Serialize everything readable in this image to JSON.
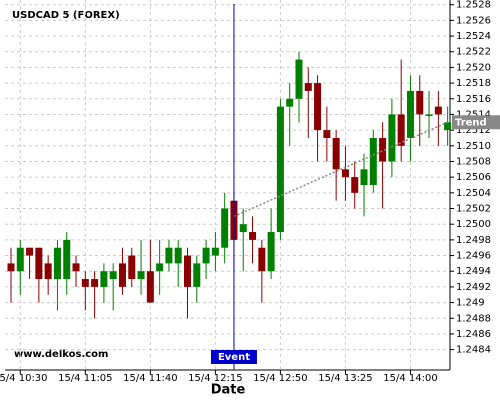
{
  "chart_data": {
    "type": "candlestick",
    "title": "USDCAD 5 (FOREX)",
    "x_label": "Date",
    "watermark": "www.delkos.com",
    "categories": [
      null,
      "15/4 10:30",
      null,
      null,
      null,
      null,
      null,
      null,
      "15/4 11:05",
      null,
      null,
      null,
      null,
      null,
      null,
      "15/4 11:40",
      null,
      null,
      null,
      null,
      null,
      null,
      "15/4 12:15",
      null,
      null,
      null,
      null,
      null,
      null,
      "15/4 12:50",
      null,
      null,
      null,
      null,
      null,
      null,
      "15/4 13:25",
      null,
      null,
      null,
      null,
      null,
      null,
      "15/4 14:00",
      null,
      null,
      null,
      null
    ],
    "series": [
      {
        "up_color": "#008000",
        "down_color": "#8b0000",
        "open": [
          1.2495,
          1.2494,
          1.2497,
          1.2497,
          1.2495,
          1.2493,
          1.2493,
          1.2495,
          1.2493,
          1.2493,
          1.2492,
          1.2493,
          1.2495,
          1.2496,
          1.2493,
          1.2494,
          1.2494,
          1.2495,
          1.2495,
          1.2496,
          1.2492,
          1.2495,
          1.2496,
          1.2497,
          1.2503,
          1.2499,
          1.2499,
          1.2497,
          1.2494,
          1.2499,
          1.2515,
          1.2516,
          1.2518,
          1.2518,
          1.2512,
          1.2511,
          1.2507,
          1.2506,
          1.2505,
          1.2505,
          1.2511,
          1.2508,
          1.2514,
          1.2511,
          1.2517,
          1.2514,
          1.2515,
          1.2512
        ],
        "high": [
          1.2497,
          1.2498,
          1.2497,
          1.2497,
          1.2496,
          1.2498,
          1.2499,
          1.2496,
          1.2494,
          1.2494,
          1.2495,
          1.2495,
          1.2497,
          1.2497,
          1.2498,
          1.2498,
          1.2498,
          1.2498,
          1.2498,
          1.2497,
          1.2496,
          1.2498,
          1.2499,
          1.2504,
          1.2504,
          1.2502,
          1.2501,
          1.2498,
          1.2502,
          1.2516,
          1.2518,
          1.2522,
          1.252,
          1.2519,
          1.2515,
          1.2512,
          1.251,
          1.2508,
          1.2509,
          1.2512,
          1.2513,
          1.2516,
          1.2521,
          1.2519,
          1.2519,
          1.2517,
          1.2517,
          1.2515
        ],
        "low": [
          1.249,
          1.2491,
          1.2493,
          1.249,
          1.2491,
          1.2489,
          1.2491,
          1.2492,
          1.2489,
          1.2488,
          1.249,
          1.2489,
          1.2491,
          1.2492,
          1.2491,
          1.249,
          1.2491,
          1.2494,
          1.2492,
          1.2488,
          1.249,
          1.2493,
          1.2494,
          1.2495,
          1.2494,
          1.2494,
          1.2495,
          1.249,
          1.2493,
          1.2498,
          1.251,
          1.2513,
          1.2511,
          1.2508,
          1.2508,
          1.2503,
          1.2503,
          1.2502,
          1.2501,
          1.2504,
          1.2502,
          1.2506,
          1.2508,
          1.2508,
          1.251,
          1.2511,
          1.251,
          1.251
        ],
        "close": [
          1.2494,
          1.2497,
          1.2496,
          1.2493,
          1.2493,
          1.2497,
          1.2498,
          1.2494,
          1.2492,
          1.2492,
          1.2494,
          1.2494,
          1.2492,
          1.2493,
          1.2494,
          1.249,
          1.2495,
          1.2497,
          1.2497,
          1.2492,
          1.2495,
          1.2497,
          1.2497,
          1.2502,
          1.2498,
          1.25,
          1.2498,
          1.2494,
          1.2499,
          1.2515,
          1.2516,
          1.2521,
          1.2517,
          1.2512,
          1.2511,
          1.2507,
          1.2506,
          1.2504,
          1.2507,
          1.2511,
          1.2508,
          1.2514,
          1.251,
          1.2517,
          1.2514,
          1.2514,
          1.2514,
          1.2513
        ]
      }
    ],
    "event": {
      "label": "Event",
      "x": 24,
      "color": "#0000cc"
    },
    "trend": {
      "label": "Trend",
      "start": {
        "x": 24,
        "y": 1.2501
      },
      "end": {
        "x": 47,
        "y": 1.2513
      }
    },
    "ylim": [
      1.24814,
      1.25286
    ],
    "yticks": [
      1.2484,
      1.2486,
      1.2488,
      1.249,
      1.2492,
      1.2494,
      1.2496,
      1.2498,
      {
        "value": 1.25,
        "label": "1.2500"
      },
      1.2502,
      1.2504,
      1.2506,
      1.2508,
      {
        "value": 1.251,
        "label": "1.2510"
      },
      1.2512,
      1.2514,
      1.2516,
      1.2518,
      {
        "value": 1.252,
        "label": "1.2520"
      },
      1.2522,
      1.2524,
      1.2526,
      1.2528
    ],
    "grid": true
  }
}
